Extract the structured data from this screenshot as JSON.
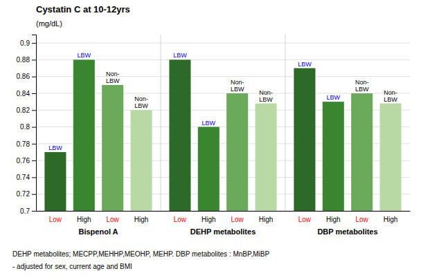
{
  "chart_data": {
    "type": "bar",
    "title": "Cystatin C at 10-12yrs",
    "ylabel": "(mg/dL)",
    "categories": [
      "Bispenol A",
      "DEHP metabolites",
      "DBP metabolites"
    ],
    "series": [
      {
        "color": "#2d6a27",
        "values": [
          0.77,
          0.88,
          0.87
        ],
        "subgroup_label": "Low",
        "subgroup_label_color": "red",
        "labels": [
          "LBW",
          "LBW",
          "LBW"
        ],
        "label_color": "blue"
      },
      {
        "color": "#3a8530",
        "values": [
          0.88,
          0.8,
          0.83
        ],
        "subgroup_label": "High",
        "subgroup_label_color": "black",
        "labels": [
          "LBW",
          "LBW",
          "LBW"
        ],
        "label_color": "blue"
      },
      {
        "color": "#6aaa5a",
        "values": [
          0.85,
          0.84,
          0.84
        ],
        "subgroup_label": "Low",
        "subgroup_label_color": "red",
        "labels": [
          "Non-\nLBW",
          "Non-\nLBW",
          "Non-\nLBW"
        ],
        "label_color": "black"
      },
      {
        "color": "#b8d9a4",
        "values": [
          0.82,
          0.828,
          0.828
        ],
        "subgroup_label": "High",
        "subgroup_label_color": "black",
        "labels": [
          "Non-\nLBW",
          "Non-\nLBW",
          "Non-\nLBW"
        ],
        "label_color": "black"
      }
    ],
    "ylim": [
      0.7,
      0.91
    ],
    "yticks": [
      0.7,
      0.72,
      0.74,
      0.76,
      0.78,
      0.8,
      0.82,
      0.84,
      0.86,
      0.88,
      0.9
    ],
    "grid": true,
    "footnotes": [
      "DEHP metabolites; MECPP,MEHHP,MEOHP, MEHP. DBP metabolites : MnBP,MiBP",
      "- adjusted for sex, current age and BMI"
    ]
  }
}
